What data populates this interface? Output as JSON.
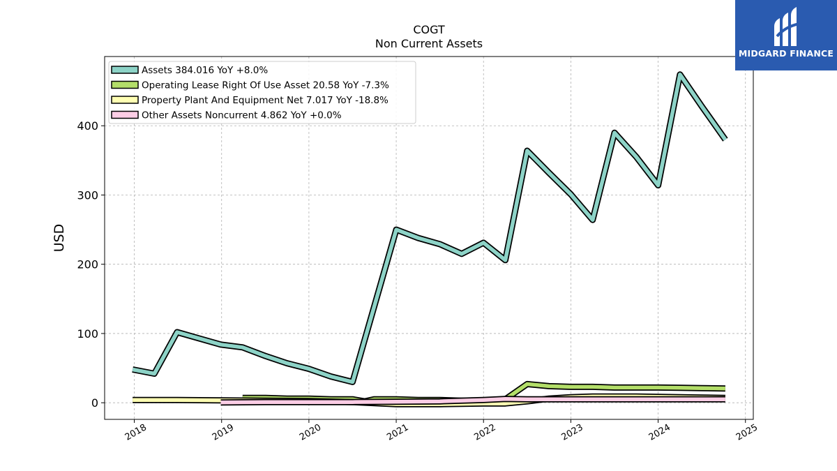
{
  "chart_data": {
    "type": "line",
    "title": "COGT",
    "subtitle": "Non Current  Assets",
    "ylabel": "USD",
    "xlabel": "",
    "xlim": [
      2017.66,
      2025.09
    ],
    "ylim": [
      -24,
      500
    ],
    "yticks": [
      0,
      100,
      200,
      300,
      400
    ],
    "xticks": [
      "2018",
      "2019",
      "2020",
      "2021",
      "2022",
      "2023",
      "2024",
      "2025"
    ],
    "grid": true,
    "legend_position": "top-left",
    "series": [
      {
        "name": "Assets  384.016 YoY +8.0%",
        "color": "#8dd3c7",
        "points": [
          [
            2017.98,
            48
          ],
          [
            2018.23,
            42
          ],
          [
            2018.49,
            102
          ],
          [
            2018.74,
            93
          ],
          [
            2018.99,
            84
          ],
          [
            2019.24,
            80
          ],
          [
            2019.49,
            68
          ],
          [
            2019.75,
            57
          ],
          [
            2020.0,
            49
          ],
          [
            2020.25,
            38
          ],
          [
            2020.5,
            30
          ],
          [
            2020.75,
            140
          ],
          [
            2021.0,
            250
          ],
          [
            2021.25,
            238
          ],
          [
            2021.5,
            229
          ],
          [
            2021.75,
            215
          ],
          [
            2022.0,
            231
          ],
          [
            2022.25,
            206
          ],
          [
            2022.5,
            364
          ],
          [
            2022.75,
            332
          ],
          [
            2023.0,
            301
          ],
          [
            2023.25,
            264
          ],
          [
            2023.5,
            390
          ],
          [
            2023.75,
            355
          ],
          [
            2024.0,
            314
          ],
          [
            2024.25,
            474
          ],
          [
            2024.5,
            428
          ],
          [
            2024.77,
            380
          ]
        ]
      },
      {
        "name": "Operating Lease Right Of Use Asset  20.58 YoY -7.3%",
        "color": "#b3de69",
        "points": [
          [
            2019.24,
            7
          ],
          [
            2019.49,
            7
          ],
          [
            2019.75,
            6
          ],
          [
            2020.0,
            6
          ],
          [
            2020.25,
            5
          ],
          [
            2020.5,
            5
          ],
          [
            2020.64,
            2
          ],
          [
            2020.75,
            5
          ],
          [
            2021.0,
            5
          ],
          [
            2021.25,
            4
          ],
          [
            2021.5,
            4
          ],
          [
            2021.75,
            3
          ],
          [
            2022.0,
            3
          ],
          [
            2022.25,
            5
          ],
          [
            2022.5,
            27
          ],
          [
            2022.75,
            24
          ],
          [
            2023.0,
            23
          ],
          [
            2023.25,
            23
          ],
          [
            2023.5,
            22
          ],
          [
            2023.75,
            22
          ],
          [
            2024.0,
            22
          ],
          [
            2024.25,
            21.5
          ],
          [
            2024.5,
            21
          ],
          [
            2024.77,
            20.6
          ]
        ]
      },
      {
        "name": "Property Plant And Equipment Net  7.017 YoY -18.8%",
        "color": "#ffffb3",
        "points": [
          [
            2017.98,
            4
          ],
          [
            2018.49,
            4
          ],
          [
            2018.99,
            3.5
          ],
          [
            2019.49,
            3
          ],
          [
            2019.99,
            2.5
          ],
          [
            2020.5,
            1
          ],
          [
            2021.0,
            -2
          ],
          [
            2021.5,
            -2
          ],
          [
            2022.0,
            -1
          ],
          [
            2022.25,
            -1
          ],
          [
            2022.5,
            2
          ],
          [
            2022.75,
            6
          ],
          [
            2023.0,
            8
          ],
          [
            2023.25,
            9
          ],
          [
            2023.5,
            9
          ],
          [
            2023.75,
            9
          ],
          [
            2024.0,
            8.5
          ],
          [
            2024.25,
            8
          ],
          [
            2024.5,
            7.5
          ],
          [
            2024.77,
            7
          ]
        ]
      },
      {
        "name": "Other Assets Noncurrent  4.862 YoY +0.0%",
        "color": "#fccde5",
        "points": [
          [
            2018.99,
            0.5
          ],
          [
            2019.5,
            1
          ],
          [
            2020.0,
            1
          ],
          [
            2020.5,
            1
          ],
          [
            2021.0,
            1.5
          ],
          [
            2021.5,
            2
          ],
          [
            2022.0,
            4
          ],
          [
            2022.25,
            5.5
          ],
          [
            2022.5,
            5
          ],
          [
            2023.0,
            5
          ],
          [
            2023.5,
            5
          ],
          [
            2024.0,
            5
          ],
          [
            2024.77,
            4.9
          ]
        ]
      }
    ]
  },
  "branding": {
    "logo_text": "MIDGARD FINANCE",
    "logo_color": "#2a5bb0"
  }
}
